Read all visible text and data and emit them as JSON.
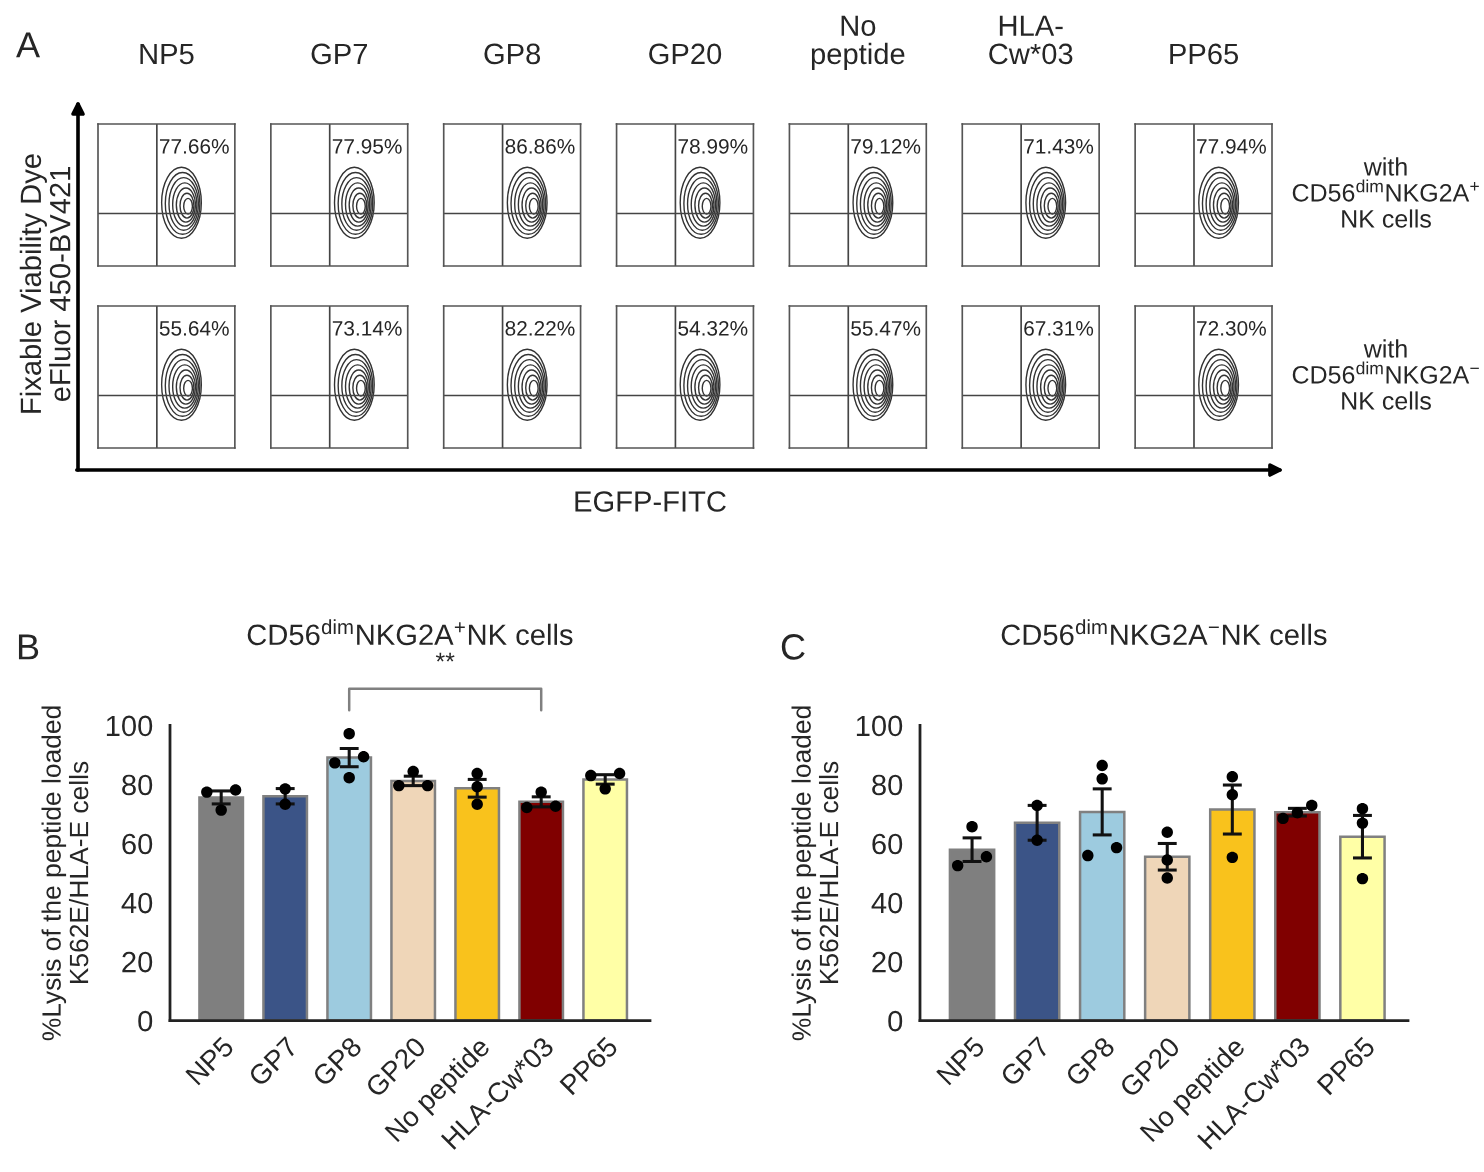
{
  "chart_data": [
    {
      "type": "other",
      "annotations": [
        "A"
      ],
      "xlabel": "EGFP-FITC",
      "ylabel": "Fixable Viability Dye\neFluor 450-BV421",
      "categories": [
        "NP5",
        "GP7",
        "GP8",
        "GP20",
        "No\npeptide",
        "HLA-\nCw*03",
        "PP65"
      ],
      "series": [
        {
          "name": "with\nCD56$^{dim}$NKG2A$^{+}$\nNK cells",
          "values": [
            77.66,
            77.95,
            86.86,
            78.99,
            79.12,
            71.43,
            77.94
          ],
          "value_labels": [
            "77.66%",
            "77.95%",
            "86.86%",
            "78.99%",
            "79.12%",
            "71.43%",
            "77.94%"
          ]
        },
        {
          "name": "with\nCD56$^{dim}$NKG2A$^{−}$\nNK cells",
          "values": [
            55.64,
            73.14,
            82.22,
            54.32,
            55.47,
            67.31,
            72.3
          ],
          "value_labels": [
            "55.64%",
            "73.14%",
            "82.22%",
            "54.32%",
            "55.47%",
            "67.31%",
            "72.30%"
          ]
        }
      ]
    },
    {
      "type": "bar",
      "annotations": [
        "B",
        "**"
      ],
      "title": "CD56$^{dim}$NKG2A$^{+}$NK cells",
      "ylabel": "%Lysis of the peptide loaded\nK562E/HLA-E cells",
      "categories": [
        "NP5",
        "GP7",
        "GP8",
        "GP20",
        "No peptide",
        "HLA-Cw*03",
        "PP65"
      ],
      "series": [
        {
          "type": "bar",
          "colors": [
            "#7f7f7f",
            "#3b5487",
            "#9dcbdf",
            "#efd6b8",
            "#f9c21c",
            "#800000",
            "#ffffa6"
          ],
          "values": [
            75.6,
            76.0,
            89.1,
            81.2,
            78.7,
            74.1,
            81.7
          ],
          "errors": [
            2.2,
            2.6,
            3.1,
            1.6,
            3.0,
            1.7,
            1.6
          ]
        },
        {
          "type": "scatter",
          "color": "#000000",
          "x": [
            "NP5",
            "NP5",
            "NP5",
            "GP7",
            "GP7",
            "GP8",
            "GP8",
            "GP8",
            "GP8",
            "GP20",
            "GP20",
            "GP20",
            "No peptide",
            "No peptide",
            "No peptide",
            "HLA-Cw*03",
            "HLA-Cw*03",
            "HLA-Cw*03",
            "PP65",
            "PP65",
            "PP65"
          ],
          "values": [
            78.1,
            71.3,
            77.4,
            78.5,
            73.3,
            97.2,
            89.4,
            87.3,
            82.3,
            84.4,
            79.6,
            79.6,
            83.7,
            79.2,
            73.3,
            77.4,
            72.2,
            72.6,
            83.7,
            83.0,
            78.5
          ]
        }
      ],
      "ylim": [
        0,
        100
      ],
      "yticks": [
        0,
        20,
        40,
        60,
        80,
        100
      ]
    },
    {
      "type": "bar",
      "annotations": [
        "C"
      ],
      "title": "CD56$^{dim}$NKG2A$^{−}$NK cells",
      "ylabel": "%Lysis of the peptide loaded\nK562E/HLA-E cells",
      "categories": [
        "NP5",
        "GP7",
        "GP8",
        "GP20",
        "No peptide",
        "HLA-Cw*03",
        "PP65"
      ],
      "series": [
        {
          "type": "bar",
          "colors": [
            "#7f7f7f",
            "#3b5487",
            "#9dcbdf",
            "#efd6b8",
            "#f9c21c",
            "#800000",
            "#ffffa6"
          ],
          "values": [
            57.9,
            67.0,
            70.7,
            55.5,
            71.5,
            70.6,
            62.3
          ],
          "errors": [
            4.0,
            5.9,
            7.8,
            4.5,
            8.3,
            1.3,
            7.2
          ]
        },
        {
          "type": "scatter",
          "color": "#000000",
          "x": [
            "NP5",
            "NP5",
            "NP5",
            "GP7",
            "GP7",
            "GP8",
            "GP8",
            "GP8",
            "GP8",
            "GP20",
            "GP20",
            "GP20",
            "No peptide",
            "No peptide",
            "No peptide",
            "HLA-Cw*03",
            "HLA-Cw*03",
            "HLA-Cw*03",
            "PP65",
            "PP65",
            "PP65"
          ],
          "values": [
            65.7,
            52.5,
            55.5,
            72.9,
            61.1,
            86.4,
            81.9,
            55.9,
            58.6,
            63.8,
            54.4,
            48.3,
            82.6,
            76.5,
            55.3,
            72.9,
            68.5,
            70.4,
            71.8,
            66.9,
            48.1
          ]
        }
      ],
      "ylim": [
        0,
        100
      ],
      "yticks": [
        0,
        20,
        40,
        60,
        80,
        100
      ]
    }
  ]
}
